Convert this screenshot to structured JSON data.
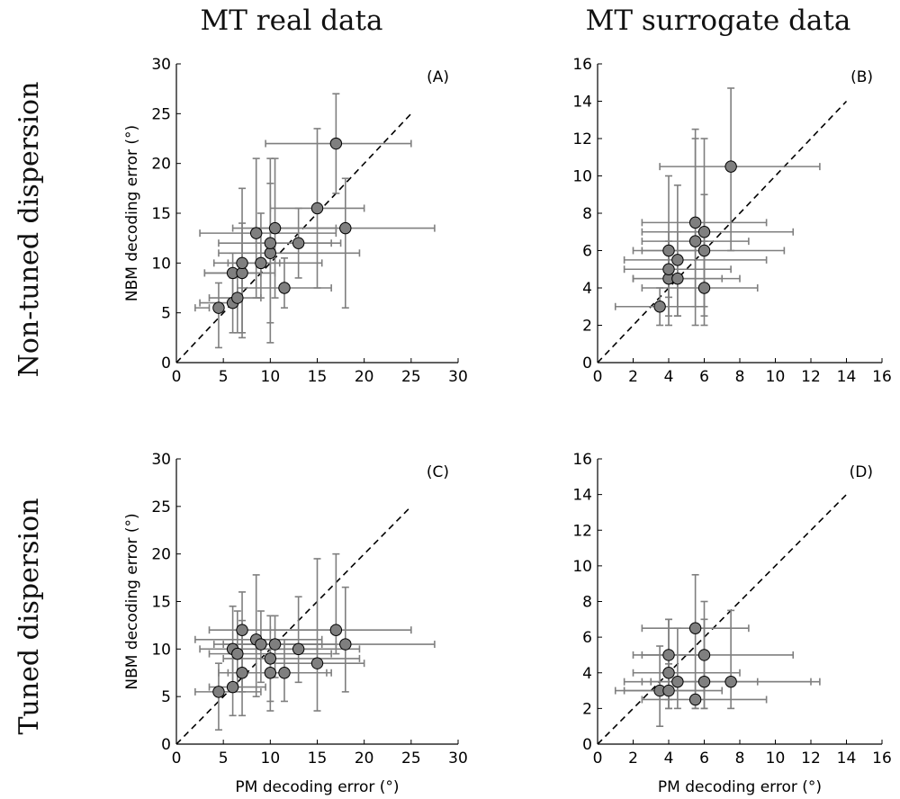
{
  "column_titles": [
    "MT real data",
    "MT surrogate data"
  ],
  "row_titles": [
    "Non-tuned dispersion",
    "Tuned dispersion"
  ],
  "chart_data": [
    {
      "type": "scatter",
      "panel_label": "(A)",
      "xlabel": "",
      "ylabel": "NBM decoding error (°)",
      "xlim": [
        0,
        30
      ],
      "ylim": [
        0,
        30
      ],
      "xticks": [
        0,
        5,
        10,
        15,
        20,
        25,
        30
      ],
      "yticks": [
        0,
        5,
        10,
        15,
        20,
        25,
        30
      ],
      "diagonal": [
        0,
        25
      ],
      "points": [
        {
          "x": 4.5,
          "y": 5.5,
          "xerr": [
            2.0,
            3.5
          ],
          "yerr": [
            1.5,
            8.0
          ]
        },
        {
          "x": 6.0,
          "y": 6.0,
          "xerr": [
            2.5,
            6.5
          ],
          "yerr": [
            3.0,
            8.5
          ]
        },
        {
          "x": 6.0,
          "y": 9.0,
          "xerr": [
            3.0,
            9.0
          ],
          "yerr": [
            6.0,
            11.0
          ]
        },
        {
          "x": 6.5,
          "y": 6.5,
          "xerr": [
            3.5,
            9.0
          ],
          "yerr": [
            3.0,
            9.0
          ]
        },
        {
          "x": 7.0,
          "y": 9.0,
          "xerr": [
            3.0,
            10.5
          ],
          "yerr": [
            3.0,
            14.0
          ]
        },
        {
          "x": 7.0,
          "y": 10.0,
          "xerr": [
            4.0,
            11.0
          ],
          "yerr": [
            2.5,
            17.5
          ]
        },
        {
          "x": 8.5,
          "y": 13.0,
          "xerr": [
            2.5,
            17.0
          ],
          "yerr": [
            6.5,
            20.5
          ]
        },
        {
          "x": 9.0,
          "y": 10.0,
          "xerr": [
            5.5,
            15.5
          ],
          "yerr": [
            6.5,
            15.0
          ]
        },
        {
          "x": 10.0,
          "y": 11.0,
          "xerr": [
            4.5,
            19.5
          ],
          "yerr": [
            2.0,
            18.0
          ]
        },
        {
          "x": 10.0,
          "y": 12.0,
          "xerr": [
            4.5,
            16.5
          ],
          "yerr": [
            4.0,
            20.5
          ]
        },
        {
          "x": 10.5,
          "y": 13.5,
          "xerr": [
            6.0,
            17.0
          ],
          "yerr": [
            6.5,
            20.5
          ]
        },
        {
          "x": 11.5,
          "y": 7.5,
          "xerr": [
            6.5,
            16.5
          ],
          "yerr": [
            5.5,
            10.5
          ]
        },
        {
          "x": 13.0,
          "y": 12.0,
          "xerr": [
            8.5,
            17.5
          ],
          "yerr": [
            8.5,
            15.5
          ]
        },
        {
          "x": 15.0,
          "y": 15.5,
          "xerr": [
            10.0,
            20.0
          ],
          "yerr": [
            7.5,
            23.5
          ]
        },
        {
          "x": 17.0,
          "y": 22.0,
          "xerr": [
            9.5,
            25.0
          ],
          "yerr": [
            17.0,
            27.0
          ]
        },
        {
          "x": 18.0,
          "y": 13.5,
          "xerr": [
            8.5,
            27.5
          ],
          "yerr": [
            5.5,
            18.5
          ]
        }
      ]
    },
    {
      "type": "scatter",
      "panel_label": "(B)",
      "xlabel": "",
      "ylabel": "",
      "xlim": [
        0,
        16
      ],
      "ylim": [
        0,
        16
      ],
      "xticks": [
        0,
        2,
        4,
        6,
        8,
        10,
        12,
        14,
        16
      ],
      "yticks": [
        0,
        2,
        4,
        6,
        8,
        10,
        12,
        14,
        16
      ],
      "diagonal": [
        0,
        14
      ],
      "points": [
        {
          "x": 3.5,
          "y": 3.0,
          "xerr": [
            1.0,
            6.0
          ],
          "yerr": [
            2.0,
            4.0
          ]
        },
        {
          "x": 4.0,
          "y": 4.5,
          "xerr": [
            2.0,
            7.0
          ],
          "yerr": [
            2.5,
            7.0
          ]
        },
        {
          "x": 4.0,
          "y": 5.0,
          "xerr": [
            1.5,
            7.5
          ],
          "yerr": [
            3.5,
            6.5
          ]
        },
        {
          "x": 4.0,
          "y": 6.0,
          "xerr": [
            2.5,
            6.0
          ],
          "yerr": [
            2.0,
            10.0
          ]
        },
        {
          "x": 4.5,
          "y": 4.5,
          "xerr": [
            2.0,
            8.0
          ],
          "yerr": [
            2.5,
            7.0
          ]
        },
        {
          "x": 4.5,
          "y": 5.5,
          "xerr": [
            1.5,
            9.5
          ],
          "yerr": [
            2.5,
            9.5
          ]
        },
        {
          "x": 5.5,
          "y": 6.5,
          "xerr": [
            2.5,
            8.5
          ],
          "yerr": [
            2.0,
            12.0
          ]
        },
        {
          "x": 5.5,
          "y": 7.5,
          "xerr": [
            2.5,
            9.5
          ],
          "yerr": [
            3.0,
            12.5
          ]
        },
        {
          "x": 6.0,
          "y": 4.0,
          "xerr": [
            2.5,
            9.0
          ],
          "yerr": [
            2.0,
            6.5
          ]
        },
        {
          "x": 6.0,
          "y": 6.0,
          "xerr": [
            2.0,
            10.5
          ],
          "yerr": [
            2.5,
            12.0
          ]
        },
        {
          "x": 6.0,
          "y": 7.0,
          "xerr": [
            2.5,
            11.0
          ],
          "yerr": [
            3.0,
            9.0
          ]
        },
        {
          "x": 7.5,
          "y": 10.5,
          "xerr": [
            3.5,
            12.5
          ],
          "yerr": [
            6.0,
            14.7
          ]
        }
      ]
    },
    {
      "type": "scatter",
      "panel_label": "(C)",
      "xlabel": "PM decoding error (°)",
      "ylabel": "NBM decoding error (°)",
      "xlim": [
        0,
        30
      ],
      "ylim": [
        0,
        30
      ],
      "xticks": [
        0,
        5,
        10,
        15,
        20,
        25,
        30
      ],
      "yticks": [
        0,
        5,
        10,
        15,
        20,
        25,
        30
      ],
      "diagonal": [
        0,
        25
      ],
      "points": [
        {
          "x": 4.5,
          "y": 5.5,
          "xerr": [
            2.0,
            9.0
          ],
          "yerr": [
            1.5,
            8.5
          ]
        },
        {
          "x": 6.0,
          "y": 6.0,
          "xerr": [
            3.5,
            9.5
          ],
          "yerr": [
            3.0,
            9.5
          ]
        },
        {
          "x": 6.0,
          "y": 10.0,
          "xerr": [
            2.5,
            15.0
          ],
          "yerr": [
            5.5,
            14.5
          ]
        },
        {
          "x": 6.5,
          "y": 9.5,
          "xerr": [
            3.5,
            16.5
          ],
          "yerr": [
            6.0,
            14.0
          ]
        },
        {
          "x": 7.0,
          "y": 7.5,
          "xerr": [
            4.5,
            10.5
          ],
          "yerr": [
            3.0,
            13.0
          ]
        },
        {
          "x": 7.0,
          "y": 12.0,
          "xerr": [
            3.5,
            16.5
          ],
          "yerr": [
            5.5,
            16.0
          ]
        },
        {
          "x": 8.5,
          "y": 11.0,
          "xerr": [
            2.0,
            15.5
          ],
          "yerr": [
            5.0,
            17.8
          ]
        },
        {
          "x": 9.0,
          "y": 10.5,
          "xerr": [
            4.0,
            17.0
          ],
          "yerr": [
            6.5,
            14.0
          ]
        },
        {
          "x": 10.0,
          "y": 7.5,
          "xerr": [
            5.5,
            16.0
          ],
          "yerr": [
            3.5,
            11.0
          ]
        },
        {
          "x": 10.0,
          "y": 9.0,
          "xerr": [
            5.0,
            19.5
          ],
          "yerr": [
            4.5,
            13.5
          ]
        },
        {
          "x": 10.5,
          "y": 10.5,
          "xerr": [
            5.0,
            15.5
          ],
          "yerr": [
            7.0,
            13.5
          ]
        },
        {
          "x": 11.5,
          "y": 7.5,
          "xerr": [
            6.5,
            16.5
          ],
          "yerr": [
            4.5,
            11.0
          ]
        },
        {
          "x": 13.0,
          "y": 10.0,
          "xerr": [
            8.5,
            19.5
          ],
          "yerr": [
            6.5,
            15.5
          ]
        },
        {
          "x": 15.0,
          "y": 8.5,
          "xerr": [
            10.0,
            20.0
          ],
          "yerr": [
            3.5,
            19.5
          ]
        },
        {
          "x": 17.0,
          "y": 12.0,
          "xerr": [
            10.0,
            25.0
          ],
          "yerr": [
            9.5,
            20.0
          ]
        },
        {
          "x": 18.0,
          "y": 10.5,
          "xerr": [
            9.0,
            27.5
          ],
          "yerr": [
            5.5,
            16.5
          ]
        }
      ]
    },
    {
      "type": "scatter",
      "panel_label": "(D)",
      "xlabel": "PM decoding error (°)",
      "ylabel": "",
      "xlim": [
        0,
        16
      ],
      "ylim": [
        0,
        16
      ],
      "xticks": [
        0,
        2,
        4,
        6,
        8,
        10,
        12,
        14,
        16
      ],
      "yticks": [
        0,
        2,
        4,
        6,
        8,
        10,
        12,
        14,
        16
      ],
      "diagonal": [
        0,
        14
      ],
      "points": [
        {
          "x": 3.5,
          "y": 3.0,
          "xerr": [
            1.0,
            6.0
          ],
          "yerr": [
            1.0,
            5.5
          ]
        },
        {
          "x": 4.0,
          "y": 3.0,
          "xerr": [
            1.5,
            7.0
          ],
          "yerr": [
            2.0,
            4.5
          ]
        },
        {
          "x": 4.0,
          "y": 4.0,
          "xerr": [
            2.0,
            8.0
          ],
          "yerr": [
            2.0,
            7.0
          ]
        },
        {
          "x": 4.0,
          "y": 5.0,
          "xerr": [
            2.5,
            6.0
          ],
          "yerr": [
            2.5,
            7.0
          ]
        },
        {
          "x": 4.5,
          "y": 3.5,
          "xerr": [
            1.5,
            9.0
          ],
          "yerr": [
            2.0,
            6.5
          ]
        },
        {
          "x": 5.5,
          "y": 2.5,
          "xerr": [
            2.5,
            9.5
          ],
          "yerr": [
            2.0,
            3.5
          ]
        },
        {
          "x": 5.5,
          "y": 6.5,
          "xerr": [
            2.5,
            8.5
          ],
          "yerr": [
            2.0,
            9.5
          ]
        },
        {
          "x": 6.0,
          "y": 3.5,
          "xerr": [
            2.5,
            12.0
          ],
          "yerr": [
            2.0,
            7.0
          ]
        },
        {
          "x": 6.0,
          "y": 5.0,
          "xerr": [
            2.0,
            11.0
          ],
          "yerr": [
            2.0,
            8.0
          ]
        },
        {
          "x": 7.5,
          "y": 3.5,
          "xerr": [
            3.0,
            12.5
          ],
          "yerr": [
            2.0,
            7.5
          ]
        }
      ]
    }
  ]
}
